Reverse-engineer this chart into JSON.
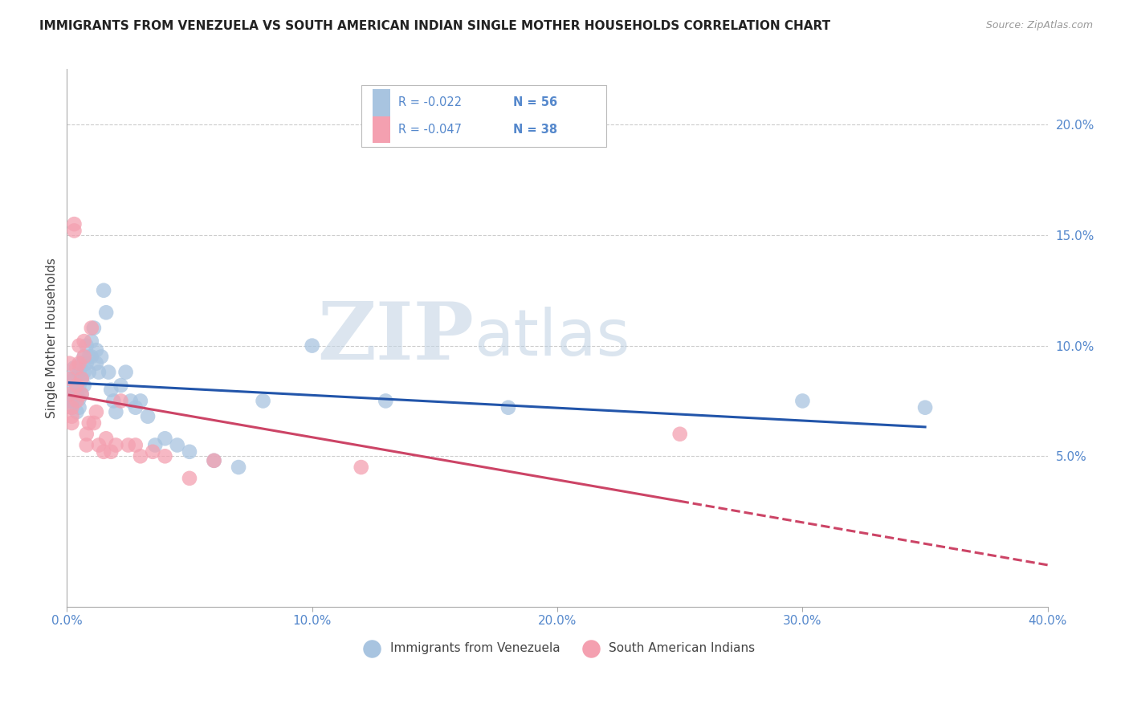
{
  "title": "IMMIGRANTS FROM VENEZUELA VS SOUTH AMERICAN INDIAN SINGLE MOTHER HOUSEHOLDS CORRELATION CHART",
  "source": "Source: ZipAtlas.com",
  "ylabel": "Single Mother Households",
  "right_yticks": [
    "5.0%",
    "10.0%",
    "15.0%",
    "20.0%"
  ],
  "right_ytick_values": [
    0.05,
    0.1,
    0.15,
    0.2
  ],
  "xlim": [
    0.0,
    0.4
  ],
  "ylim": [
    -0.018,
    0.225
  ],
  "legend_r1": "R = -0.022",
  "legend_n1": "N = 56",
  "legend_r2": "R = -0.047",
  "legend_n2": "N = 38",
  "blue_color": "#a8c4e0",
  "pink_color": "#f4a0b0",
  "blue_line_color": "#2255aa",
  "pink_line_color": "#cc4466",
  "watermark_zip": "ZIP",
  "watermark_atlas": "atlas",
  "watermark_color_zip": "#c5d5e5",
  "watermark_color_atlas": "#b8cce0",
  "blue_x": [
    0.001,
    0.001,
    0.002,
    0.002,
    0.002,
    0.003,
    0.003,
    0.003,
    0.004,
    0.004,
    0.004,
    0.005,
    0.005,
    0.005,
    0.005,
    0.006,
    0.006,
    0.006,
    0.007,
    0.007,
    0.007,
    0.008,
    0.008,
    0.009,
    0.009,
    0.01,
    0.01,
    0.011,
    0.012,
    0.012,
    0.013,
    0.014,
    0.015,
    0.016,
    0.017,
    0.018,
    0.019,
    0.02,
    0.022,
    0.024,
    0.026,
    0.028,
    0.03,
    0.033,
    0.036,
    0.04,
    0.045,
    0.05,
    0.06,
    0.07,
    0.08,
    0.1,
    0.13,
    0.18,
    0.3,
    0.35
  ],
  "blue_y": [
    0.075,
    0.085,
    0.08,
    0.075,
    0.072,
    0.09,
    0.085,
    0.078,
    0.082,
    0.078,
    0.07,
    0.088,
    0.082,
    0.076,
    0.072,
    0.092,
    0.085,
    0.078,
    0.095,
    0.088,
    0.082,
    0.1,
    0.092,
    0.095,
    0.088,
    0.102,
    0.095,
    0.108,
    0.098,
    0.092,
    0.088,
    0.095,
    0.125,
    0.115,
    0.088,
    0.08,
    0.075,
    0.07,
    0.082,
    0.088,
    0.075,
    0.072,
    0.075,
    0.068,
    0.055,
    0.058,
    0.055,
    0.052,
    0.048,
    0.045,
    0.075,
    0.1,
    0.075,
    0.072,
    0.075,
    0.072
  ],
  "pink_x": [
    0.001,
    0.001,
    0.001,
    0.002,
    0.002,
    0.002,
    0.003,
    0.003,
    0.004,
    0.004,
    0.004,
    0.005,
    0.005,
    0.006,
    0.006,
    0.007,
    0.007,
    0.008,
    0.008,
    0.009,
    0.01,
    0.011,
    0.012,
    0.013,
    0.015,
    0.016,
    0.018,
    0.02,
    0.022,
    0.025,
    0.028,
    0.03,
    0.035,
    0.04,
    0.05,
    0.06,
    0.12,
    0.25
  ],
  "pink_y": [
    0.092,
    0.085,
    0.078,
    0.072,
    0.068,
    0.065,
    0.155,
    0.152,
    0.09,
    0.082,
    0.075,
    0.1,
    0.092,
    0.085,
    0.078,
    0.102,
    0.095,
    0.06,
    0.055,
    0.065,
    0.108,
    0.065,
    0.07,
    0.055,
    0.052,
    0.058,
    0.052,
    0.055,
    0.075,
    0.055,
    0.055,
    0.05,
    0.052,
    0.05,
    0.04,
    0.048,
    0.045,
    0.06
  ]
}
